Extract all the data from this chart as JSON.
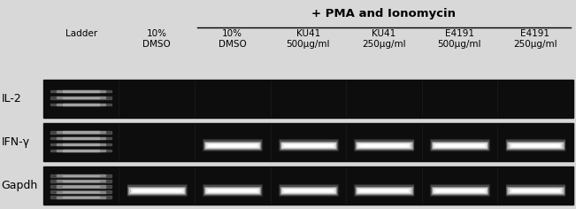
{
  "background_color": "#d8d8d8",
  "gel_bg": "#0d0d0d",
  "title": "+ PMA and Ionomycin",
  "title_fontsize": 9.5,
  "title_fontweight": "bold",
  "row_labels": [
    "IL-2",
    "IFN-γ",
    "Gapdh"
  ],
  "col_labels": [
    "Ladder",
    "10%\nDMSO",
    "10%\nDMSO",
    "KU41\n500μg/ml",
    "KU41\n250μg/ml",
    "E4191\n500μg/ml",
    "E4191\n250μg/ml"
  ],
  "label_fontsize": 7.5,
  "n_rows": 3,
  "n_cols": 7,
  "fig_width": 6.51,
  "fig_height": 2.36,
  "fig_dpi": 100,
  "row_label_fontsize": 9,
  "il2_ladder_bands": [
    0.35,
    0.52,
    0.69
  ],
  "ifng_ladder_bands": [
    0.28,
    0.44,
    0.6,
    0.76
  ],
  "gapdh_ladder_bands": [
    0.2,
    0.34,
    0.48,
    0.62,
    0.76
  ]
}
